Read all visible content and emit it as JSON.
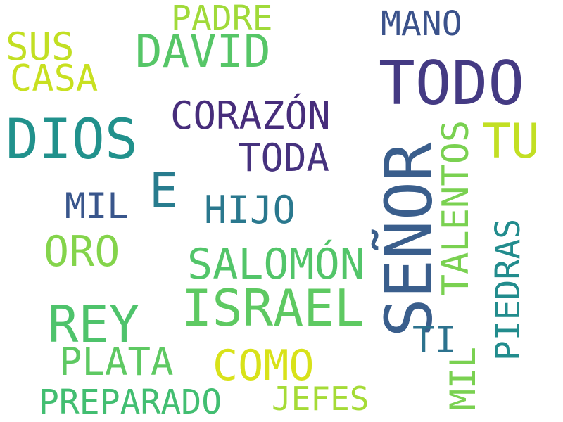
{
  "words": [
    {
      "id": "todo",
      "text": "TODO",
      "color": "#443a83",
      "orientation": "horizontal"
    },
    {
      "id": "senor",
      "text": "SEÑOR",
      "color": "#3a5e8c",
      "orientation": "vertical"
    },
    {
      "id": "dios",
      "text": "DIOS",
      "color": "#21918c",
      "orientation": "horizontal"
    },
    {
      "id": "israel",
      "text": "ISRAEL",
      "color": "#5ec962",
      "orientation": "horizontal"
    },
    {
      "id": "rey",
      "text": "REY",
      "color": "#4ec36b",
      "orientation": "horizontal"
    },
    {
      "id": "david",
      "text": "DAVID",
      "color": "#56c667",
      "orientation": "horizontal"
    },
    {
      "id": "corazon",
      "text": "CORAZÓN",
      "color": "#472d7b",
      "orientation": "horizontal"
    },
    {
      "id": "talentos",
      "text": "TALENTOS",
      "color": "#7ad151",
      "orientation": "vertical"
    },
    {
      "id": "salomon",
      "text": "SALOMÓN",
      "color": "#52c569",
      "orientation": "horizontal"
    },
    {
      "id": "tu",
      "text": "TU",
      "color": "#c2df23",
      "orientation": "horizontal"
    },
    {
      "id": "e",
      "text": "E",
      "color": "#287c8e",
      "orientation": "horizontal"
    },
    {
      "id": "toda",
      "text": "TODA",
      "color": "#46327e",
      "orientation": "horizontal"
    },
    {
      "id": "hijo",
      "text": "HIJO",
      "color": "#2a788e",
      "orientation": "horizontal"
    },
    {
      "id": "plata",
      "text": "PLATA",
      "color": "#5ec962",
      "orientation": "horizontal"
    },
    {
      "id": "como",
      "text": "COMO",
      "color": "#d8e219",
      "orientation": "horizontal"
    },
    {
      "id": "oro",
      "text": "ORO",
      "color": "#84d44b",
      "orientation": "horizontal"
    },
    {
      "id": "mil_h",
      "text": "MIL",
      "color": "#39568c",
      "orientation": "horizontal"
    },
    {
      "id": "mil_v",
      "text": "MIL",
      "color": "#7ad151",
      "orientation": "vertical"
    },
    {
      "id": "piedras",
      "text": "PIEDRAS",
      "color": "#228c8d",
      "orientation": "vertical"
    },
    {
      "id": "sus",
      "text": "SUS",
      "color": "#c2df23",
      "orientation": "horizontal"
    },
    {
      "id": "casa",
      "text": "CASA",
      "color": "#c8e020",
      "orientation": "horizontal"
    },
    {
      "id": "padre",
      "text": "PADRE",
      "color": "#a0da39",
      "orientation": "horizontal"
    },
    {
      "id": "mano",
      "text": "MANO",
      "color": "#3b528b",
      "orientation": "horizontal"
    },
    {
      "id": "ti",
      "text": "TI",
      "color": "#2c728e",
      "orientation": "horizontal"
    },
    {
      "id": "preparado",
      "text": "PREPARADO",
      "color": "#42be71",
      "orientation": "horizontal"
    },
    {
      "id": "jefes",
      "text": "JEFES",
      "color": "#a5db36",
      "orientation": "horizontal"
    }
  ]
}
